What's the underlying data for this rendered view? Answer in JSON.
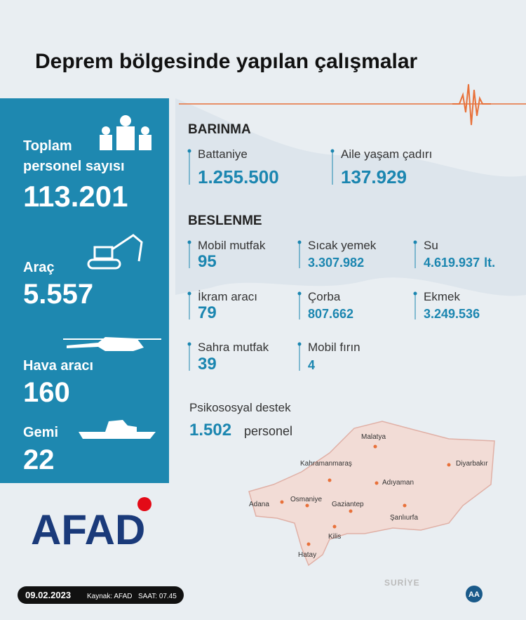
{
  "header": {
    "title": "Deprem bölgesinde yapılan çalışmalar"
  },
  "resources": [
    {
      "label": [
        "Toplam",
        "personel sayısı"
      ],
      "value": "113.201"
    },
    {
      "label": [
        "Araç"
      ],
      "value": "5.557"
    },
    {
      "label": [
        "Hava aracı"
      ],
      "value": "160"
    },
    {
      "label": [
        "Gemi"
      ],
      "value": "22"
    }
  ],
  "barinma": {
    "title": "BARINMA",
    "items": [
      {
        "label": "Battaniye",
        "value": "1.255.500"
      },
      {
        "label": "Aile yaşam çadırı",
        "value": "137.929"
      }
    ]
  },
  "beslenme": {
    "title": "BESLENME",
    "items": [
      {
        "label": "Mobil mutfak",
        "value": "95"
      },
      {
        "label": "Sıcak yemek",
        "value": "3.307.982"
      },
      {
        "label": "Su",
        "value": "4.619.937",
        "unit": "lt."
      },
      {
        "label": "İkram aracı",
        "value": "79"
      },
      {
        "label": "Çorba",
        "value": "807.662"
      },
      {
        "label": "Ekmek",
        "value": "3.249.536"
      },
      {
        "label": "Sahra mutfak",
        "value": "39"
      },
      {
        "label": "Mobil fırın",
        "value": "4"
      }
    ]
  },
  "psikososyal": {
    "label": "Psikososyal destek",
    "value": "1.502",
    "unit": "personel"
  },
  "map": {
    "country": "SURİYE",
    "cities": [
      "Malatya",
      "Kahramanmaraş",
      "Diyarbakır",
      "Adıyaman",
      "Adana",
      "Osmaniye",
      "Gaziantep",
      "Şanlıurfa",
      "Kilis",
      "Hatay"
    ]
  },
  "logo": {
    "text": "AFAD",
    "agency": "AA"
  },
  "footer": {
    "date": "09.02.2023",
    "source": "Kaynak: AFAD",
    "time": "SAAT: 07.45"
  }
}
